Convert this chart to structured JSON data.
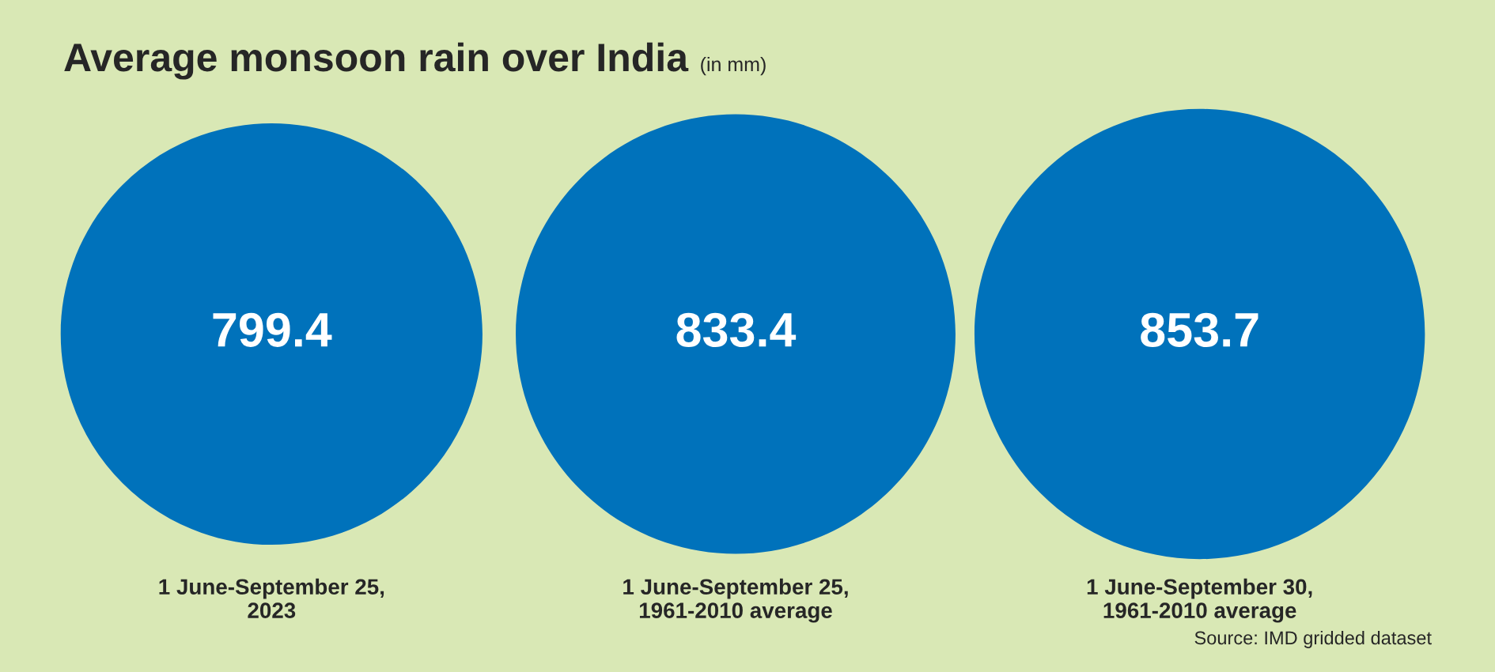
{
  "chart_data": {
    "type": "other",
    "title": "Average monsoon rain over India",
    "subtitle": "(in mm)",
    "categories": [
      "1 June-September 25,\n2023",
      "1 June-September 25,\n1961-2010 average",
      "1 June-September 30,\n1961-2010 average"
    ],
    "values": [
      799.4,
      833.4,
      853.7
    ],
    "color": "#0072bb",
    "data_labels": true,
    "legend": false,
    "annotations": [
      "Source: IMD gridded dataset"
    ]
  }
}
